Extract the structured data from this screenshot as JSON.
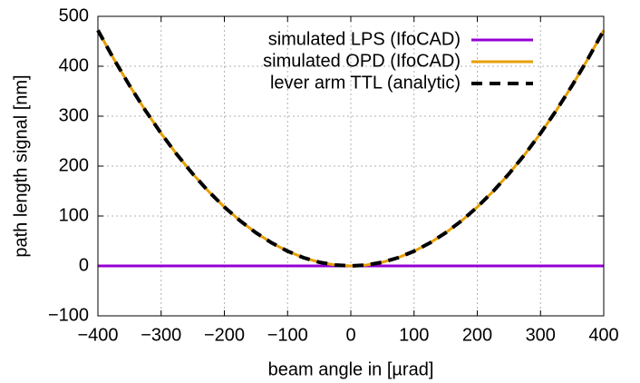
{
  "chart_data": {
    "type": "line",
    "x_label": "beam angle in [µrad]",
    "y_label": "path length signal [nm]",
    "x": [
      -400,
      -375,
      -350,
      -325,
      -300,
      -275,
      -250,
      -225,
      -200,
      -175,
      -150,
      -125,
      -100,
      -75,
      -50,
      -25,
      0,
      25,
      50,
      75,
      100,
      125,
      150,
      175,
      200,
      225,
      250,
      275,
      300,
      325,
      350,
      375,
      400
    ],
    "series": [
      {
        "name": "simulated LPS (IfoCAD)",
        "color": "#9400d3",
        "dash": false,
        "values": [
          0,
          0,
          0,
          0,
          0,
          0,
          0,
          0,
          0,
          0,
          0,
          0,
          0,
          0,
          0,
          0,
          0,
          0,
          0,
          0,
          0,
          0,
          0,
          0,
          0,
          0,
          0,
          0,
          0,
          0,
          0,
          0,
          0
        ]
      },
      {
        "name": "simulated OPD (IfoCAD)",
        "color": "#e69f00",
        "dash": false,
        "values": [
          472,
          414.8,
          361.4,
          311.6,
          265.5,
          223.1,
          184.4,
          149.3,
          118,
          90.3,
          66.4,
          46.1,
          29.5,
          16.6,
          7.4,
          1.8,
          0,
          1.8,
          7.4,
          16.6,
          29.5,
          46.1,
          66.4,
          90.3,
          118,
          149.3,
          184.4,
          223.1,
          265.5,
          311.6,
          361.4,
          414.8,
          472
        ]
      },
      {
        "name": "lever arm TTL (analytic)",
        "color": "#000000",
        "dash": true,
        "values": [
          472,
          414.8,
          361.4,
          311.6,
          265.5,
          223.1,
          184.4,
          149.3,
          118,
          90.3,
          66.4,
          46.1,
          29.5,
          16.6,
          7.4,
          1.8,
          0,
          1.8,
          7.4,
          16.6,
          29.5,
          46.1,
          66.4,
          90.3,
          118,
          149.3,
          184.4,
          223.1,
          265.5,
          311.6,
          361.4,
          414.8,
          472
        ]
      }
    ],
    "xlim": [
      -400,
      400
    ],
    "ylim": [
      -100,
      500
    ],
    "xticks": [
      {
        "value": -400,
        "label": "−400"
      },
      {
        "value": -300,
        "label": "−300"
      },
      {
        "value": -200,
        "label": "−200"
      },
      {
        "value": -100,
        "label": "−100"
      },
      0,
      100,
      200,
      300,
      400
    ],
    "yticks": [
      {
        "value": -100,
        "label": "−100"
      },
      0,
      100,
      200,
      300,
      400,
      500
    ],
    "grid": true,
    "legend": "top-right"
  }
}
